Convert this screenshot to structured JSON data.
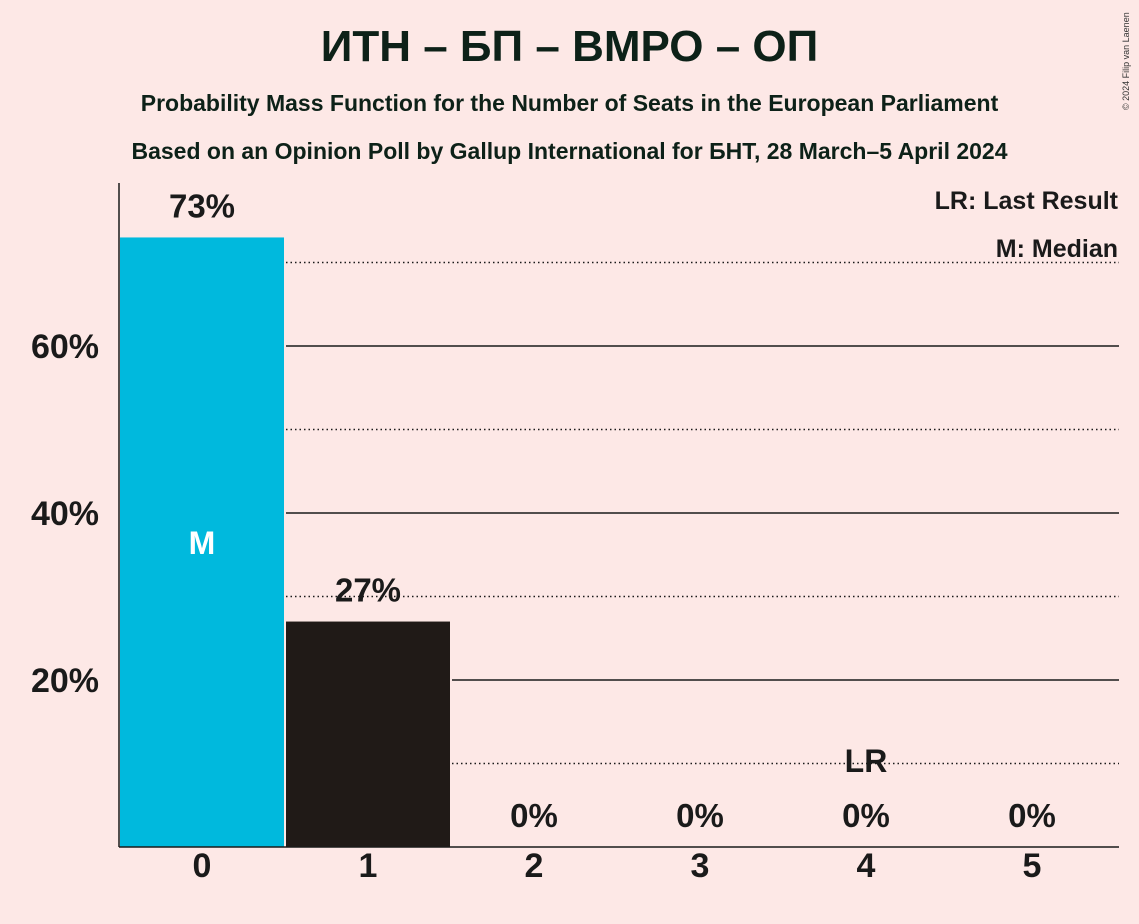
{
  "copyright": "© 2024 Filip van Laenen",
  "chart_data": {
    "type": "bar",
    "title": "ИТН – БП – ВМРО – ОП",
    "subtitle": "Probability Mass Function for the Number of Seats in the European Parliament",
    "subtitle2": "Based on an Opinion Poll by Gallup International for БНТ, 28 March–5 April 2024",
    "categories": [
      "0",
      "1",
      "2",
      "3",
      "4",
      "5"
    ],
    "values": [
      73,
      27,
      0,
      0,
      0,
      0
    ],
    "value_labels": [
      "73%",
      "27%",
      "0%",
      "0%",
      "0%",
      "0%"
    ],
    "ylim": [
      0,
      80
    ],
    "y_ticks": [
      20,
      40,
      60
    ],
    "y_tick_labels": [
      "20%",
      "40%",
      "60%"
    ],
    "grid_solid": [
      20,
      40,
      60
    ],
    "grid_dotted": [
      10,
      30,
      50,
      70
    ],
    "median_index": 0,
    "median_marker": "M",
    "last_result_index": 4,
    "last_result_marker": "LR",
    "legend": [
      "LR: Last Result",
      "M: Median"
    ],
    "legend_position": "top-right",
    "colors": {
      "median_bar": "#00B9DD",
      "bar": "#201A17",
      "background": "#FDE8E6"
    }
  }
}
